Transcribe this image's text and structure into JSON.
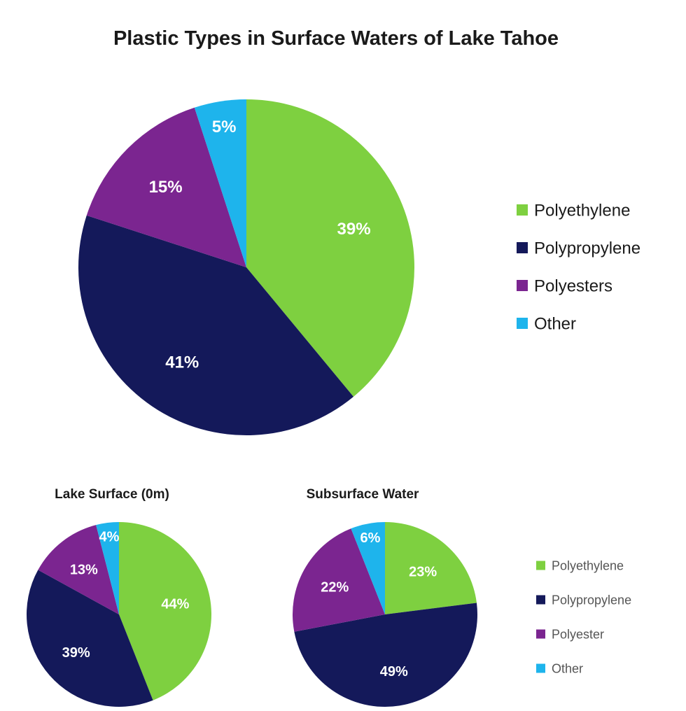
{
  "chart_data": [
    {
      "type": "pie",
      "title": "Plastic Types in Surface Waters of Lake Tahoe",
      "categories": [
        "Polyethylene",
        "Polypropylene",
        "Polyesters",
        "Other"
      ],
      "values": [
        39,
        41,
        15,
        5
      ],
      "labels": [
        "39%",
        "41%",
        "15%",
        "5%"
      ],
      "colors": [
        "#7ed040",
        "#14195a",
        "#7b2590",
        "#1eb4ec"
      ],
      "legend": [
        "Polyethylene",
        "Polypropylene",
        "Polyesters",
        "Other"
      ],
      "legend_position": "right"
    },
    {
      "type": "pie",
      "title": "Lake Surface (0m)",
      "categories": [
        "Polyethylene",
        "Polypropylene",
        "Polyester",
        "Other"
      ],
      "values": [
        44,
        39,
        13,
        4
      ],
      "labels": [
        "44%",
        "39%",
        "13%",
        "4%"
      ],
      "colors": [
        "#7ed040",
        "#14195a",
        "#7b2590",
        "#1eb4ec"
      ]
    },
    {
      "type": "pie",
      "title": "Subsurface Water",
      "categories": [
        "Polyethylene",
        "Polypropylene",
        "Polyester",
        "Other"
      ],
      "values": [
        23,
        49,
        22,
        6
      ],
      "labels": [
        "23%",
        "49%",
        "22%",
        "6%"
      ],
      "colors": [
        "#7ed040",
        "#14195a",
        "#7b2590",
        "#1eb4ec"
      ],
      "legend": [
        "Polyethylene",
        "Polypropylene",
        "Polyester",
        "Other"
      ],
      "legend_position": "right"
    }
  ]
}
